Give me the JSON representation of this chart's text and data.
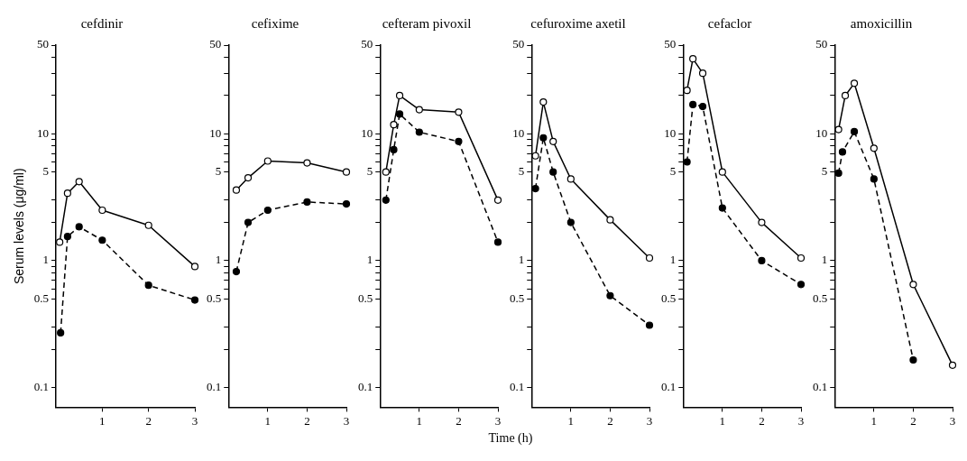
{
  "chart_data": [
    {
      "type": "line",
      "title": "cefdinir",
      "ylabel": "Serum levels (μg/ml)",
      "log": "y",
      "marker": "circle",
      "xlim": [
        0,
        3
      ],
      "ylim": [
        0.07,
        50
      ],
      "xticks": [
        1,
        2,
        3
      ],
      "yticks": [
        0.1,
        {
          "value": 0.2,
          "label": null
        },
        {
          "value": 0.3,
          "label": null
        },
        0.5,
        {
          "value": 0.6,
          "label": null
        },
        {
          "value": 0.7,
          "label": null
        },
        {
          "value": 0.8,
          "label": null
        },
        {
          "value": 0.9,
          "label": null
        },
        1,
        {
          "value": 2,
          "label": null
        },
        {
          "value": 3,
          "label": null
        },
        5,
        {
          "value": 6,
          "label": null
        },
        {
          "value": 7,
          "label": null
        },
        {
          "value": 8,
          "label": null
        },
        {
          "value": 9,
          "label": null
        },
        10,
        {
          "value": 20,
          "label": null
        },
        {
          "value": 30,
          "label": null
        },
        {
          "value": 40,
          "label": null
        },
        50
      ],
      "series": [
        {
          "color": "#000000",
          "line_style": "solid",
          "x": [
            0.08,
            0.25,
            0.5,
            1,
            2,
            3
          ],
          "values": [
            1.4,
            3.4,
            4.2,
            2.5,
            1.9,
            0.9
          ]
        },
        {
          "color": "#000000",
          "line_style": "dashed",
          "x": [
            0.1,
            0.25,
            0.5,
            1,
            2,
            3
          ],
          "values": [
            0.27,
            1.55,
            1.85,
            1.45,
            0.64,
            0.49
          ]
        }
      ]
    },
    {
      "type": "line",
      "title": "cefixime",
      "log": "y",
      "marker": "circle",
      "xlim": [
        0,
        3
      ],
      "ylim": [
        0.07,
        50
      ],
      "xticks": [
        1,
        2,
        3
      ],
      "yticks": [
        0.1,
        {
          "value": 0.2,
          "label": null
        },
        {
          "value": 0.3,
          "label": null
        },
        0.5,
        {
          "value": 0.6,
          "label": null
        },
        {
          "value": 0.7,
          "label": null
        },
        {
          "value": 0.8,
          "label": null
        },
        {
          "value": 0.9,
          "label": null
        },
        1,
        {
          "value": 2,
          "label": null
        },
        {
          "value": 3,
          "label": null
        },
        5,
        {
          "value": 6,
          "label": null
        },
        {
          "value": 7,
          "label": null
        },
        {
          "value": 8,
          "label": null
        },
        {
          "value": 9,
          "label": null
        },
        10,
        {
          "value": 20,
          "label": null
        },
        {
          "value": 30,
          "label": null
        },
        {
          "value": 40,
          "label": null
        },
        50
      ],
      "series": [
        {
          "color": "#000000",
          "line_style": "solid",
          "x": [
            0.2,
            0.5,
            1,
            2,
            3
          ],
          "values": [
            3.6,
            4.5,
            6.1,
            5.9,
            5
          ]
        },
        {
          "color": "#000000",
          "line_style": "dashed",
          "x": [
            0.2,
            0.5,
            1,
            2,
            3
          ],
          "values": [
            0.82,
            2,
            2.5,
            2.9,
            2.8
          ]
        }
      ]
    },
    {
      "type": "line",
      "title": "cefteram pivoxil",
      "xlabel": "Time (h)",
      "log": "y",
      "marker": "circle",
      "xlim": [
        0,
        3
      ],
      "ylim": [
        0.07,
        50
      ],
      "xticks": [
        1,
        2,
        3
      ],
      "yticks": [
        0.1,
        {
          "value": 0.2,
          "label": null
        },
        {
          "value": 0.3,
          "label": null
        },
        0.5,
        {
          "value": 0.6,
          "label": null
        },
        {
          "value": 0.7,
          "label": null
        },
        {
          "value": 0.8,
          "label": null
        },
        {
          "value": 0.9,
          "label": null
        },
        1,
        {
          "value": 2,
          "label": null
        },
        {
          "value": 3,
          "label": null
        },
        5,
        {
          "value": 6,
          "label": null
        },
        {
          "value": 7,
          "label": null
        },
        {
          "value": 8,
          "label": null
        },
        {
          "value": 9,
          "label": null
        },
        10,
        {
          "value": 20,
          "label": null
        },
        {
          "value": 30,
          "label": null
        },
        {
          "value": 40,
          "label": null
        },
        50
      ],
      "series": [
        {
          "color": "#000000",
          "line_style": "solid",
          "x": [
            0.15,
            0.35,
            0.5,
            1,
            2,
            3
          ],
          "values": [
            5,
            11.8,
            20,
            15.5,
            14.8,
            3
          ]
        },
        {
          "color": "#000000",
          "line_style": "dashed",
          "x": [
            0.15,
            0.35,
            0.5,
            1,
            2,
            3
          ],
          "values": [
            3,
            7.5,
            14.3,
            10.3,
            8.7,
            1.4
          ]
        }
      ]
    },
    {
      "type": "line",
      "title": "cefuroxime axetil",
      "log": "y",
      "marker": "circle",
      "xlim": [
        0,
        3
      ],
      "ylim": [
        0.07,
        50
      ],
      "xticks": [
        1,
        2,
        3
      ],
      "yticks": [
        0.1,
        {
          "value": 0.2,
          "label": null
        },
        {
          "value": 0.3,
          "label": null
        },
        0.5,
        {
          "value": 0.6,
          "label": null
        },
        {
          "value": 0.7,
          "label": null
        },
        {
          "value": 0.8,
          "label": null
        },
        {
          "value": 0.9,
          "label": null
        },
        1,
        {
          "value": 2,
          "label": null
        },
        {
          "value": 3,
          "label": null
        },
        5,
        {
          "value": 6,
          "label": null
        },
        {
          "value": 7,
          "label": null
        },
        {
          "value": 8,
          "label": null
        },
        {
          "value": 9,
          "label": null
        },
        10,
        {
          "value": 20,
          "label": null
        },
        {
          "value": 30,
          "label": null
        },
        {
          "value": 40,
          "label": null
        },
        50
      ],
      "series": [
        {
          "color": "#000000",
          "line_style": "solid",
          "x": [
            0.1,
            0.3,
            0.55,
            1,
            2,
            3
          ],
          "values": [
            6.7,
            17.8,
            8.7,
            4.4,
            2.1,
            1.05
          ]
        },
        {
          "color": "#000000",
          "line_style": "dashed",
          "x": [
            0.1,
            0.3,
            0.55,
            1,
            2,
            3
          ],
          "values": [
            3.7,
            9.3,
            5,
            2,
            0.53,
            0.31
          ]
        }
      ]
    },
    {
      "type": "line",
      "title": "cefaclor",
      "log": "y",
      "marker": "circle",
      "xlim": [
        0,
        3
      ],
      "ylim": [
        0.07,
        50
      ],
      "xticks": [
        1,
        2,
        3
      ],
      "yticks": [
        0.1,
        {
          "value": 0.2,
          "label": null
        },
        {
          "value": 0.3,
          "label": null
        },
        0.5,
        {
          "value": 0.6,
          "label": null
        },
        {
          "value": 0.7,
          "label": null
        },
        {
          "value": 0.8,
          "label": null
        },
        {
          "value": 0.9,
          "label": null
        },
        1,
        {
          "value": 2,
          "label": null
        },
        {
          "value": 3,
          "label": null
        },
        5,
        {
          "value": 6,
          "label": null
        },
        {
          "value": 7,
          "label": null
        },
        {
          "value": 8,
          "label": null
        },
        {
          "value": 9,
          "label": null
        },
        10,
        {
          "value": 20,
          "label": null
        },
        {
          "value": 30,
          "label": null
        },
        {
          "value": 40,
          "label": null
        },
        50
      ],
      "series": [
        {
          "color": "#000000",
          "line_style": "solid",
          "x": [
            0.1,
            0.25,
            0.5,
            1,
            2,
            3
          ],
          "values": [
            22,
            39,
            30,
            5,
            2,
            1.05
          ]
        },
        {
          "color": "#000000",
          "line_style": "dashed",
          "x": [
            0.1,
            0.25,
            0.5,
            1,
            2,
            3
          ],
          "values": [
            6,
            17,
            16.4,
            2.6,
            1,
            0.65
          ]
        }
      ]
    },
    {
      "type": "line",
      "title": "amoxicillin",
      "log": "y",
      "marker": "circle",
      "xlim": [
        0,
        3
      ],
      "ylim": [
        0.07,
        50
      ],
      "xticks": [
        1,
        2,
        3
      ],
      "yticks": [
        0.1,
        {
          "value": 0.2,
          "label": null
        },
        {
          "value": 0.3,
          "label": null
        },
        0.5,
        {
          "value": 0.6,
          "label": null
        },
        {
          "value": 0.7,
          "label": null
        },
        {
          "value": 0.8,
          "label": null
        },
        {
          "value": 0.9,
          "label": null
        },
        1,
        {
          "value": 2,
          "label": null
        },
        {
          "value": 3,
          "label": null
        },
        5,
        {
          "value": 6,
          "label": null
        },
        {
          "value": 7,
          "label": null
        },
        {
          "value": 8,
          "label": null
        },
        {
          "value": 9,
          "label": null
        },
        10,
        {
          "value": 20,
          "label": null
        },
        {
          "value": 30,
          "label": null
        },
        {
          "value": 40,
          "label": null
        },
        50
      ],
      "series": [
        {
          "color": "#000000",
          "line_style": "solid",
          "x": [
            0.1,
            0.27,
            0.5,
            1,
            2,
            3
          ],
          "values": [
            10.8,
            20,
            25,
            7.7,
            0.65,
            0.15
          ]
        },
        {
          "color": "#000000",
          "line_style": "dashed",
          "x": [
            0.1,
            0.2,
            0.5,
            1,
            2
          ],
          "values": [
            4.9,
            7.2,
            10.4,
            4.4,
            0.165
          ]
        }
      ]
    }
  ]
}
